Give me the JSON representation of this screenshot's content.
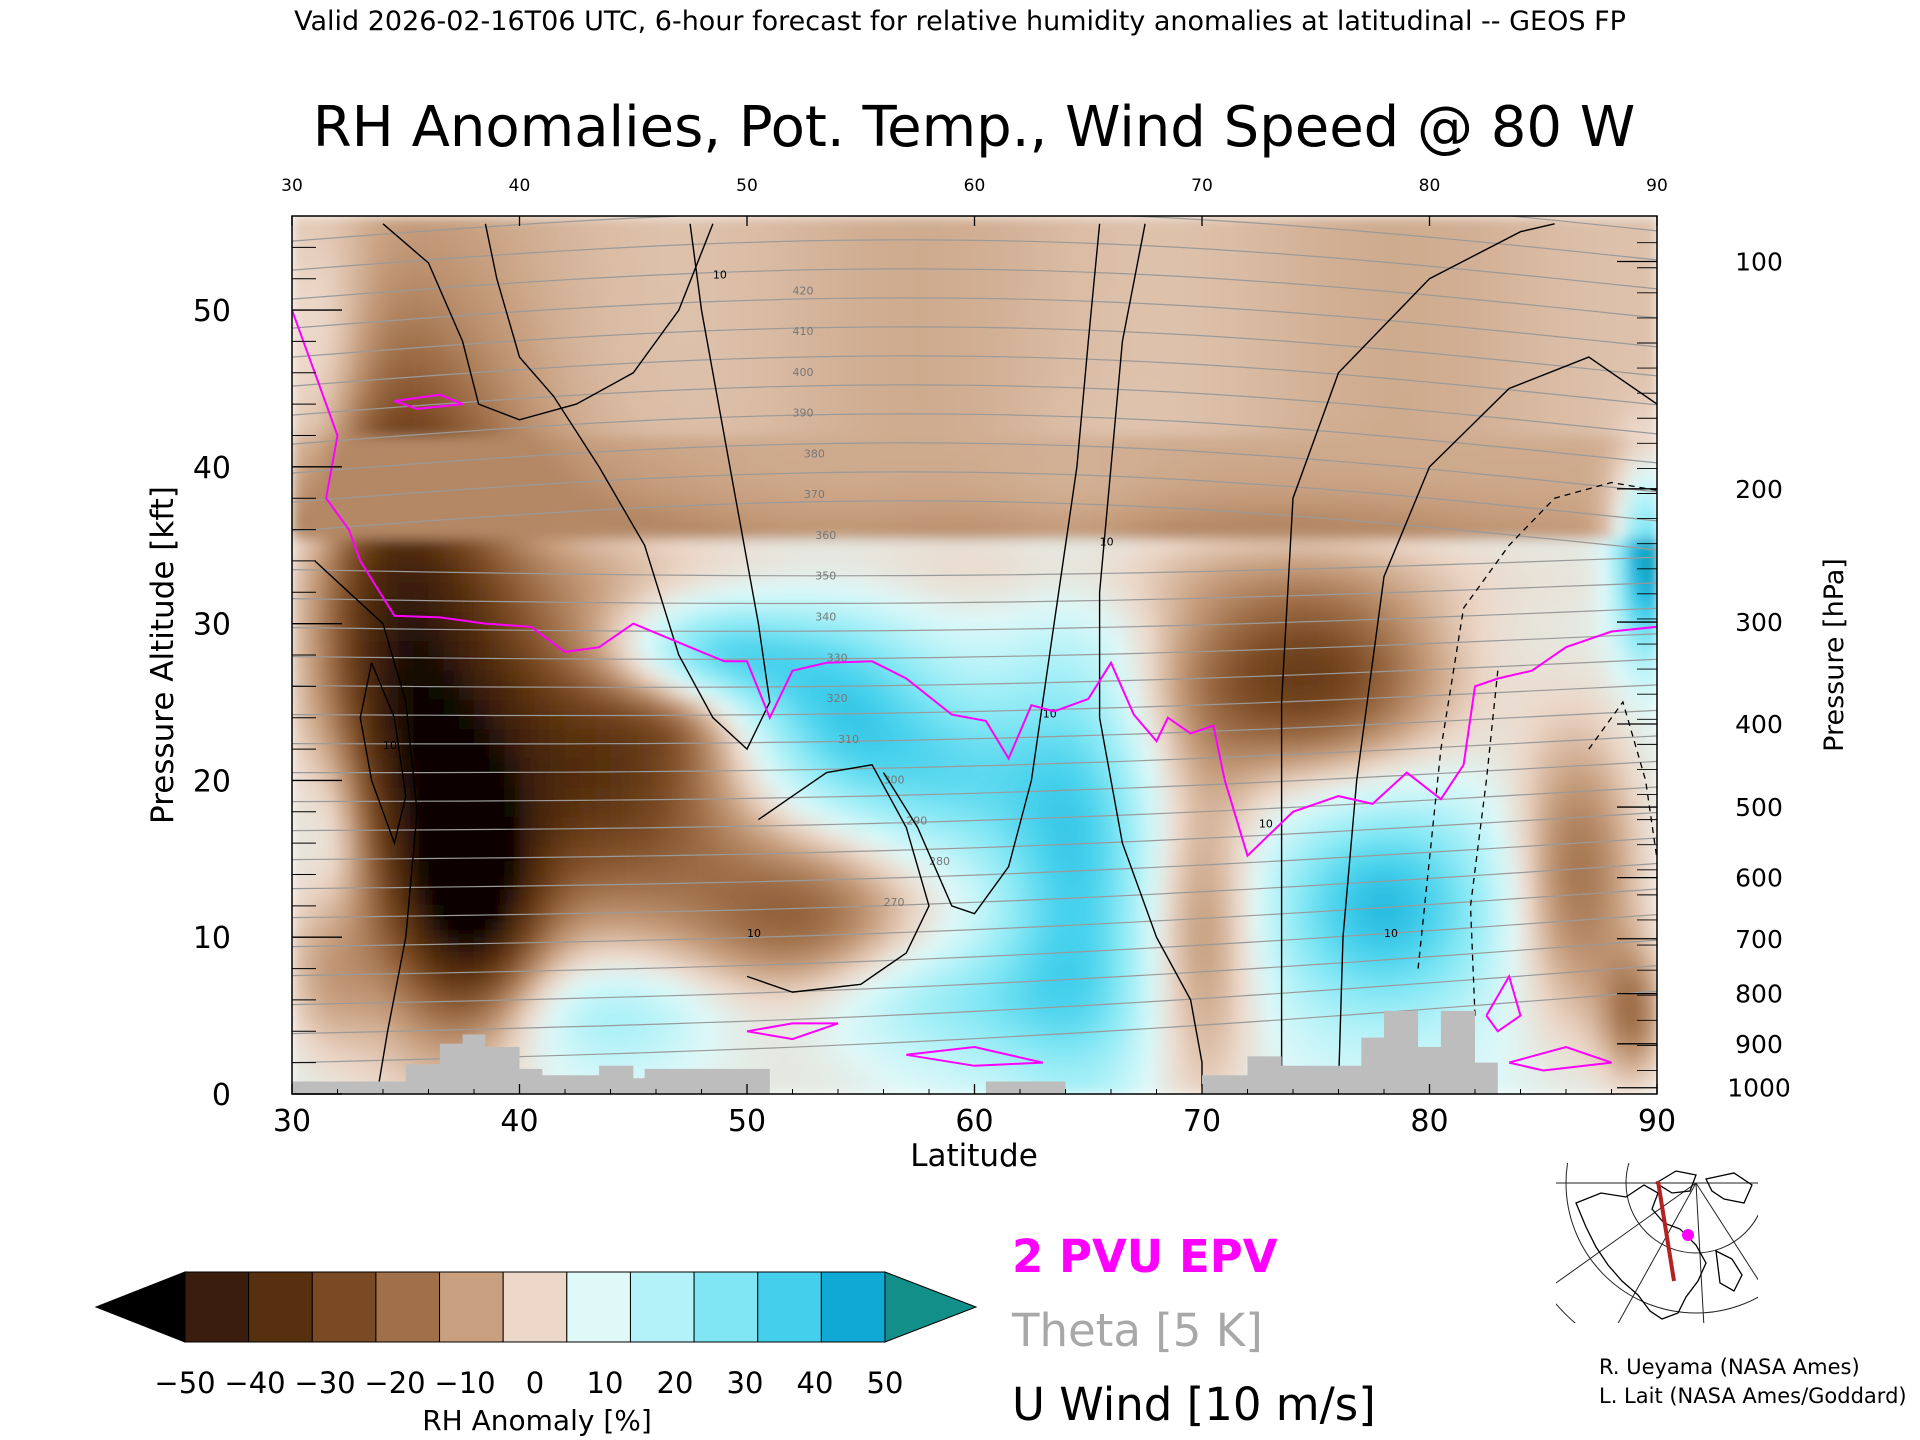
{
  "header": {
    "valid_line": "Valid 2026-02-16T06 UTC, 6-hour forecast for relative humidity anomalies at latitudinal -- GEOS FP"
  },
  "chart_data": {
    "type": "heatmap",
    "title": "RH Anomalies, Pot. Temp., Wind Speed @ 80 W",
    "xlabel": "Latitude",
    "ylabel": "Pressure Altitude [kft]",
    "y2label": "Pressure [hPa]",
    "xlim": [
      30,
      90
    ],
    "ylim": [
      0,
      56
    ],
    "x_ticks": [
      30,
      40,
      50,
      60,
      70,
      80,
      90
    ],
    "x_tick_labels": [
      "30",
      "40",
      "50",
      "60",
      "70",
      "80",
      "90"
    ],
    "y_ticks": [
      0,
      10,
      20,
      30,
      40,
      50
    ],
    "y_tick_labels": [
      "0",
      "10",
      "20",
      "30",
      "40",
      "50"
    ],
    "pressure_ticks": [
      {
        "hpa": "100",
        "kft": 53.1
      },
      {
        "hpa": "200",
        "kft": 38.6
      },
      {
        "hpa": "300",
        "kft": 30.1
      },
      {
        "hpa": "400",
        "kft": 23.6
      },
      {
        "hpa": "500",
        "kft": 18.3
      },
      {
        "hpa": "600",
        "kft": 13.8
      },
      {
        "hpa": "700",
        "kft": 9.9
      },
      {
        "hpa": "800",
        "kft": 6.4
      },
      {
        "hpa": "900",
        "kft": 3.2
      },
      {
        "hpa": "1000",
        "kft": 0.4
      }
    ],
    "colorbar": {
      "label": "RH Anomaly [%]",
      "tick_labels": [
        "-50",
        "-40",
        "-30",
        "-20",
        "-10",
        "0",
        "10",
        "20",
        "30",
        "40",
        "50"
      ],
      "colors": [
        "#3a1d0c",
        "#57300f",
        "#7a4a24",
        "#a0704a",
        "#c8a080",
        "#ecd7c8",
        "#dff8f8",
        "#b2f2f8",
        "#80e6f4",
        "#44d0ec",
        "#10a8d4"
      ],
      "under_color": "#000000",
      "over_color": "#138f8a"
    },
    "legend": [
      {
        "label": "2 PVU EPV",
        "color": "#ff00ff"
      },
      {
        "label": "Theta [5 K]",
        "color": "#a8a8a8"
      },
      {
        "label": "U Wind [10 m/s]",
        "color": "#000000"
      }
    ],
    "theta_labels": [
      "420",
      "410",
      "400",
      "390",
      "380",
      "370",
      "360",
      "350",
      "340",
      "330",
      "320",
      "310",
      "300",
      "290",
      "280",
      "270"
    ],
    "wind_label": "10",
    "anomaly_blobs": [
      {
        "lat": 33.5,
        "kft": 31.0,
        "sx": 2.4,
        "sy": 11.0,
        "v": -30
      },
      {
        "lat": 36.5,
        "kft": 22.0,
        "sx": 3.0,
        "sy": 13.0,
        "v": -45
      },
      {
        "lat": 38.0,
        "kft": 12.5,
        "sx": 2.0,
        "sy": 5.0,
        "v": -38
      },
      {
        "lat": 42.0,
        "kft": 22.0,
        "sx": 4.0,
        "sy": 8.0,
        "v": -30
      },
      {
        "lat": 45.5,
        "kft": 20.0,
        "sx": 3.5,
        "sy": 6.0,
        "v": -22
      },
      {
        "lat": 52.5,
        "kft": 10.0,
        "sx": 4.0,
        "sy": 5.5,
        "v": -38
      },
      {
        "lat": 47.0,
        "kft": 24.0,
        "sx": 2.0,
        "sy": 2.0,
        "v": -10
      },
      {
        "lat": 74.5,
        "kft": 26.5,
        "sx": 4.5,
        "sy": 4.5,
        "v": -45
      },
      {
        "lat": 70.0,
        "kft": 10.0,
        "sx": 1.8,
        "sy": 8.0,
        "v": -25
      },
      {
        "lat": 86.5,
        "kft": 14.0,
        "sx": 2.0,
        "sy": 7.0,
        "v": -30
      },
      {
        "lat": 89.0,
        "kft": 5.0,
        "sx": 1.0,
        "sy": 3.0,
        "v": -25
      },
      {
        "lat": 31.5,
        "kft": 8.0,
        "sx": 1.5,
        "sy": 4.0,
        "v": -15
      },
      {
        "lat": 62.0,
        "kft": 33.5,
        "sx": 20.0,
        "sy": 2.5,
        "v": -10
      },
      {
        "lat": 48.0,
        "kft": 28.0,
        "sx": 3.0,
        "sy": 2.5,
        "v": 35
      },
      {
        "lat": 54.0,
        "kft": 24.0,
        "sx": 3.0,
        "sy": 5.0,
        "v": 30
      },
      {
        "lat": 59.0,
        "kft": 20.0,
        "sx": 3.0,
        "sy": 4.0,
        "v": 20
      },
      {
        "lat": 64.5,
        "kft": 15.0,
        "sx": 2.5,
        "sy": 10.0,
        "v": 30
      },
      {
        "lat": 78.0,
        "kft": 12.0,
        "sx": 3.5,
        "sy": 5.0,
        "v": 35
      },
      {
        "lat": 56.0,
        "kft": 6.0,
        "sx": 6.0,
        "sy": 3.0,
        "v": 25
      },
      {
        "lat": 32.0,
        "kft": 17.0,
        "sx": 1.2,
        "sy": 5.0,
        "v": 15
      },
      {
        "lat": 89.5,
        "kft": 34.0,
        "sx": 0.9,
        "sy": 4.0,
        "v": 48
      },
      {
        "lat": 31.5,
        "kft": 44.0,
        "sx": 1.6,
        "sy": 8.0,
        "v": 15
      },
      {
        "lat": 44.0,
        "kft": 5.0,
        "sx": 3.0,
        "sy": 2.5,
        "v": 15
      }
    ],
    "epv_2pvu": [
      [
        30.0,
        50.0
      ],
      [
        31.0,
        46.0
      ],
      [
        32.0,
        42.0
      ],
      [
        31.5,
        38.0
      ],
      [
        32.5,
        36.0
      ],
      [
        33.0,
        34.0
      ],
      [
        34.5,
        30.5
      ],
      [
        36.5,
        30.4
      ],
      [
        38.5,
        30.0
      ],
      [
        40.5,
        29.8
      ],
      [
        42.0,
        28.2
      ],
      [
        43.5,
        28.5
      ],
      [
        45.0,
        30.0
      ],
      [
        47.5,
        28.5
      ],
      [
        49.0,
        27.6
      ],
      [
        50.0,
        27.6
      ],
      [
        51.0,
        24.0
      ],
      [
        52.0,
        27.0
      ],
      [
        53.5,
        27.5
      ],
      [
        55.5,
        27.6
      ],
      [
        57.0,
        26.5
      ],
      [
        59.0,
        24.2
      ],
      [
        60.5,
        23.8
      ],
      [
        61.5,
        21.4
      ],
      [
        62.5,
        24.8
      ],
      [
        63.5,
        24.4
      ],
      [
        65.0,
        25.2
      ],
      [
        66.0,
        27.5
      ],
      [
        67.0,
        24.2
      ],
      [
        68.0,
        22.5
      ],
      [
        68.5,
        24.0
      ],
      [
        69.5,
        23.0
      ],
      [
        70.5,
        23.5
      ],
      [
        71.0,
        20.0
      ],
      [
        72.0,
        15.2
      ],
      [
        74.0,
        18.0
      ],
      [
        76.0,
        19.0
      ],
      [
        77.5,
        18.5
      ],
      [
        79.0,
        20.5
      ],
      [
        80.5,
        18.8
      ],
      [
        81.5,
        21.0
      ],
      [
        82.0,
        26.0
      ],
      [
        83.0,
        26.5
      ],
      [
        84.5,
        27.0
      ],
      [
        86.0,
        28.5
      ],
      [
        88.0,
        29.5
      ],
      [
        90.0,
        29.8
      ]
    ],
    "wind_jet_lines": [
      [
        [
          34.0,
          55.5
        ],
        [
          36.0,
          53.0
        ],
        [
          37.5,
          48.0
        ],
        [
          38.2,
          44.0
        ],
        [
          40.0,
          43.0
        ],
        [
          42.5,
          44.0
        ],
        [
          45.0,
          46.0
        ],
        [
          47.0,
          50.0
        ],
        [
          48.5,
          55.5
        ]
      ],
      [
        [
          38.5,
          55.5
        ],
        [
          39.0,
          52.0
        ],
        [
          40.0,
          47.0
        ],
        [
          41.5,
          44.5
        ],
        [
          43.5,
          40.0
        ],
        [
          45.5,
          35.0
        ],
        [
          47.0,
          28.0
        ],
        [
          48.5,
          24.0
        ],
        [
          50.0,
          22.0
        ],
        [
          51.0,
          25.0
        ],
        [
          50.5,
          30.0
        ],
        [
          49.5,
          38.0
        ],
        [
          48.0,
          50.0
        ],
        [
          47.5,
          55.5
        ]
      ],
      [
        [
          56.0,
          20.5
        ],
        [
          57.5,
          17.0
        ],
        [
          59.0,
          12.0
        ],
        [
          60.0,
          11.5
        ],
        [
          61.5,
          14.5
        ],
        [
          62.5,
          20.0
        ],
        [
          63.5,
          30.0
        ],
        [
          64.5,
          40.0
        ],
        [
          65.0,
          48.0
        ],
        [
          65.5,
          55.5
        ]
      ],
      [
        [
          50.5,
          17.5
        ],
        [
          52.0,
          19.0
        ],
        [
          53.5,
          20.5
        ],
        [
          55.5,
          21.0
        ],
        [
          57.0,
          17.0
        ],
        [
          58.0,
          12.0
        ],
        [
          57.0,
          9.0
        ],
        [
          55.0,
          7.0
        ],
        [
          52.0,
          6.5
        ],
        [
          50.0,
          7.5
        ]
      ],
      [
        [
          31.0,
          34.0
        ],
        [
          32.5,
          32.0
        ],
        [
          34.0,
          30.0
        ],
        [
          35.0,
          25.0
        ],
        [
          35.5,
          18.0
        ],
        [
          35.0,
          10.0
        ],
        [
          34.2,
          4.0
        ],
        [
          33.8,
          0.5
        ]
      ],
      [
        [
          33.5,
          27.5
        ],
        [
          34.5,
          24.0
        ],
        [
          35.0,
          19.0
        ],
        [
          34.5,
          16.0
        ],
        [
          33.5,
          20.0
        ],
        [
          33.0,
          24.0
        ],
        [
          33.5,
          27.5
        ]
      ],
      [
        [
          67.5,
          55.5
        ],
        [
          66.5,
          48.0
        ],
        [
          66.0,
          40.0
        ],
        [
          65.5,
          32.0
        ],
        [
          65.5,
          24.0
        ],
        [
          66.5,
          16.0
        ],
        [
          68.0,
          10.0
        ],
        [
          69.5,
          6.0
        ],
        [
          70.0,
          2.0
        ],
        [
          70.0,
          0.5
        ]
      ],
      [
        [
          73.5,
          0.5
        ],
        [
          73.5,
          10.0
        ],
        [
          73.5,
          25.0
        ],
        [
          74.0,
          38.0
        ],
        [
          76.0,
          46.0
        ],
        [
          80.0,
          52.0
        ],
        [
          84.0,
          55.0
        ],
        [
          85.5,
          55.5
        ]
      ],
      [
        [
          76.0,
          0.5
        ],
        [
          76.2,
          10.0
        ],
        [
          76.8,
          20.0
        ],
        [
          78.0,
          33.0
        ],
        [
          80.0,
          40.0
        ],
        [
          83.5,
          45.0
        ],
        [
          87.0,
          47.0
        ],
        [
          90.0,
          44.0
        ]
      ]
    ],
    "wind_dashed_lines": [
      [
        [
          79.5,
          8.0
        ],
        [
          80.5,
          22.0
        ],
        [
          81.5,
          31.0
        ],
        [
          83.5,
          35.0
        ],
        [
          85.5,
          38.0
        ],
        [
          88.0,
          39.0
        ],
        [
          90.0,
          38.5
        ]
      ],
      [
        [
          82.0,
          5.0
        ],
        [
          81.8,
          12.0
        ],
        [
          82.5,
          20.0
        ],
        [
          83.0,
          27.0
        ]
      ],
      [
        [
          87.0,
          22.0
        ],
        [
          88.5,
          25.0
        ],
        [
          89.5,
          20.0
        ],
        [
          90.0,
          15.0
        ]
      ]
    ],
    "terrain": [
      [
        30.0,
        0.8
      ],
      [
        35.0,
        0.8
      ],
      [
        35.0,
        1.9
      ],
      [
        36.5,
        1.9
      ],
      [
        36.5,
        3.2
      ],
      [
        37.5,
        3.2
      ],
      [
        37.5,
        3.8
      ],
      [
        38.5,
        3.8
      ],
      [
        38.5,
        3.0
      ],
      [
        40.0,
        3.0
      ],
      [
        40.0,
        1.6
      ],
      [
        41.0,
        1.6
      ],
      [
        41.0,
        1.2
      ],
      [
        43.5,
        1.2
      ],
      [
        43.5,
        1.8
      ],
      [
        45.0,
        1.8
      ],
      [
        45.0,
        1.0
      ],
      [
        45.5,
        1.0
      ],
      [
        45.5,
        1.6
      ],
      [
        51.0,
        1.6
      ],
      [
        51.0,
        0.0
      ],
      [
        60.5,
        0.0
      ],
      [
        60.5,
        0.8
      ],
      [
        64.0,
        0.8
      ],
      [
        64.0,
        0.0
      ],
      [
        70.0,
        0.0
      ],
      [
        70.0,
        1.2
      ],
      [
        72.0,
        1.2
      ],
      [
        72.0,
        2.4
      ],
      [
        73.5,
        2.4
      ],
      [
        73.5,
        1.8
      ],
      [
        77.0,
        1.8
      ],
      [
        77.0,
        3.6
      ],
      [
        78.0,
        3.6
      ],
      [
        78.0,
        5.3
      ],
      [
        79.5,
        5.3
      ],
      [
        79.5,
        3.0
      ],
      [
        80.5,
        3.0
      ],
      [
        80.5,
        5.3
      ],
      [
        82.0,
        5.3
      ],
      [
        82.0,
        2.0
      ],
      [
        83.0,
        2.0
      ],
      [
        83.0,
        0.0
      ]
    ]
  },
  "map_inset": {
    "section_color": "#b22222",
    "marker_color": "#ff00ff"
  },
  "credits": {
    "line1": "R. Ueyama (NASA Ames)",
    "line2": "L. Lait (NASA Ames/Goddard)"
  }
}
